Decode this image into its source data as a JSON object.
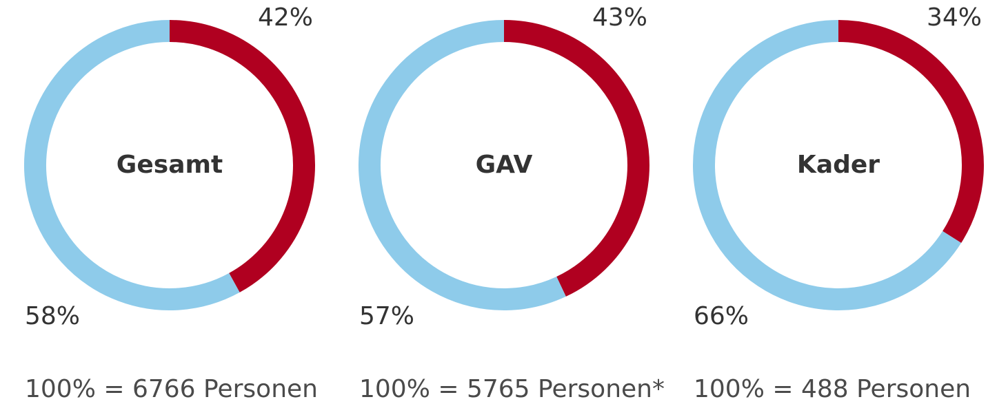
{
  "colors": {
    "red": "#b00020",
    "blue": "#8ecbea"
  },
  "chart_data": [
    {
      "type": "pie",
      "title": "Gesamt",
      "slices": [
        {
          "label": "42%",
          "value": 42,
          "color": "#b00020"
        },
        {
          "label": "58%",
          "value": 58,
          "color": "#8ecbea"
        }
      ],
      "footnote": "100% = 6766 Personen"
    },
    {
      "type": "pie",
      "title": "GAV",
      "slices": [
        {
          "label": "43%",
          "value": 43,
          "color": "#b00020"
        },
        {
          "label": "57%",
          "value": 57,
          "color": "#8ecbea"
        }
      ],
      "footnote": "100% = 5765 Personen*"
    },
    {
      "type": "pie",
      "title": "Kader",
      "slices": [
        {
          "label": "34%",
          "value": 34,
          "color": "#b00020"
        },
        {
          "label": "66%",
          "value": 66,
          "color": "#8ecbea"
        }
      ],
      "footnote": "100% = 488 Personen"
    }
  ]
}
